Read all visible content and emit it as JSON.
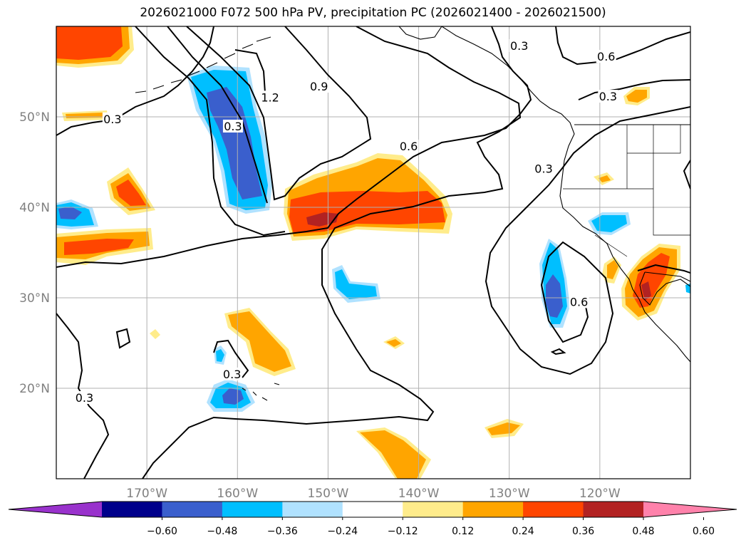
{
  "title": "2026021000 F072 500 hPa PV, precipitation PC (2026021400 - 2026021500)",
  "map": {
    "lon_range": [
      -180,
      -110
    ],
    "lat_range": [
      10,
      60
    ],
    "lon_ticks": [
      {
        "lon": -170,
        "label": "170°W"
      },
      {
        "lon": -160,
        "label": "160°W"
      },
      {
        "lon": -150,
        "label": "150°W"
      },
      {
        "lon": -140,
        "label": "140°W"
      },
      {
        "lon": -130,
        "label": "130°W"
      },
      {
        "lon": -120,
        "label": "120°W"
      }
    ],
    "lat_ticks": [
      {
        "lat": 50,
        "label": "50°N"
      },
      {
        "lat": 40,
        "label": "40°N"
      },
      {
        "lat": 30,
        "label": "30°N"
      },
      {
        "lat": 20,
        "label": "20°N"
      }
    ],
    "gridlines": true,
    "contour_labels": [
      {
        "lon": -173.8,
        "lat": 49.7,
        "text": "0.3"
      },
      {
        "lon": -160.5,
        "lat": 48.9,
        "text": "0.3"
      },
      {
        "lon": -156.4,
        "lat": 52.1,
        "text": "1.2"
      },
      {
        "lon": -151.0,
        "lat": 53.3,
        "text": "0.9"
      },
      {
        "lon": -141.1,
        "lat": 46.7,
        "text": "0.6"
      },
      {
        "lon": -128.9,
        "lat": 57.8,
        "text": "0.3"
      },
      {
        "lon": -119.1,
        "lat": 52.2,
        "text": "0.3"
      },
      {
        "lon": -119.3,
        "lat": 56.6,
        "text": "0.6"
      },
      {
        "lon": -126.2,
        "lat": 44.2,
        "text": "0.3"
      },
      {
        "lon": -122.3,
        "lat": 29.5,
        "text": "0.6"
      },
      {
        "lon": -160.6,
        "lat": 21.5,
        "text": "0.3"
      },
      {
        "lon": -176.9,
        "lat": 18.9,
        "text": "0.3"
      }
    ]
  },
  "colorbar": {
    "colors": [
      "#9932cc",
      "#00008b",
      "#3a5fcd",
      "#00bfff",
      "#b0e2ff",
      "#ffffff",
      "#ffec8b",
      "#ffa500",
      "#ff4500",
      "#b22222",
      "#ff82ab"
    ],
    "labels": [
      "−0.60",
      "−0.48",
      "−0.36",
      "−0.24",
      "−0.12",
      "0.12",
      "0.24",
      "0.36",
      "0.48",
      "0.60"
    ]
  }
}
